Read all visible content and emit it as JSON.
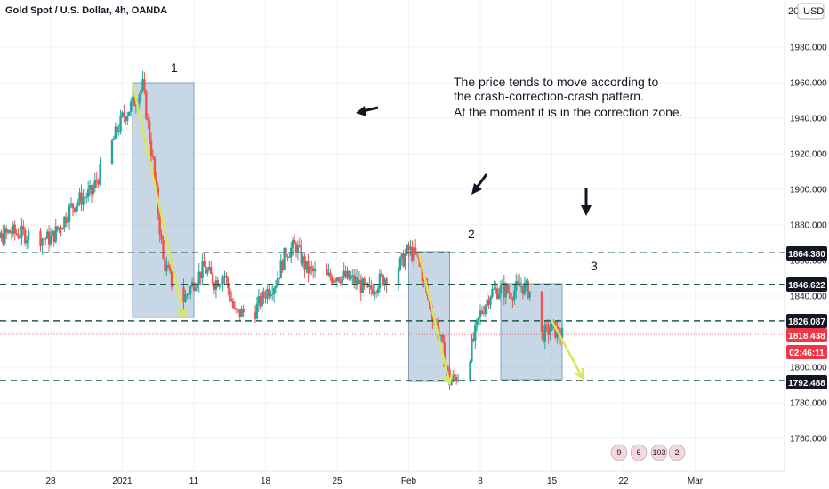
{
  "header": {
    "symbol_title": "Gold Spot / U.S. Dollar, 4h, OANDA",
    "currency_button": "USD",
    "currency_prefix": "20"
  },
  "annotation": {
    "lines": [
      "The price tends to move according to",
      "the crash-correction-crash pattern.",
      "At the moment it is in the correction zone."
    ]
  },
  "zone_labels": [
    "1",
    "2",
    "3"
  ],
  "price_tags": [
    {
      "value": "1864.380",
      "color": "#131722"
    },
    {
      "value": "1846.622",
      "color": "#131722"
    },
    {
      "value": "1826.087",
      "color": "#131722"
    },
    {
      "value": "1818.438",
      "color": "#f23645"
    },
    {
      "value": "02:46:11",
      "color": "#f23645"
    },
    {
      "value": "1792.488",
      "color": "#131722"
    }
  ],
  "bottom_indicators": [
    "9",
    "6",
    "103",
    "2"
  ],
  "colors": {
    "up": "#26a69a",
    "down": "#ef5350",
    "zone_fill": "#9bb7cf",
    "arrow": "#d9e85a",
    "dashed": "#1e5a4a",
    "current_price": "#f23645"
  },
  "chart_data": {
    "type": "candlestick",
    "symbol": "XAUUSD",
    "timeframe": "4h",
    "x_axis": {
      "tick_labels": [
        "28",
        "2021",
        "11",
        "18",
        "25",
        "Feb",
        "8",
        "15",
        "22",
        "Mar"
      ]
    },
    "y_axis": {
      "range": [
        1742,
        2002
      ],
      "tick_labels": [
        "1760.000",
        "1780.000",
        "1800.000",
        "1820.000",
        "1840.000",
        "1860.000",
        "1880.000",
        "1900.000",
        "1920.000",
        "1940.000",
        "1960.000",
        "1980.000"
      ]
    },
    "horizontal_levels": [
      1864.38,
      1846.622,
      1826.087,
      1792.488
    ],
    "current_price": 1818.438,
    "zones": [
      {
        "label": "1",
        "start": "2021-01-05",
        "end": "2021-01-11",
        "top": 1960,
        "bottom": 1828
      },
      {
        "label": "2",
        "start": "2021-02-01",
        "end": "2021-02-05",
        "top": 1865,
        "bottom": 1792
      },
      {
        "label": "3",
        "start": "2021-02-10",
        "end": "2021-02-16",
        "top": 1847,
        "bottom": 1793
      }
    ],
    "trend_arrows": [
      {
        "from": [
          "2021-01-05",
          1960
        ],
        "to": [
          "2021-01-10",
          1828
        ]
      },
      {
        "from": [
          "2021-02-02",
          1864
        ],
        "to": [
          "2021-02-05",
          1791
        ]
      },
      {
        "from": [
          "2021-02-15",
          1826
        ],
        "to": [
          "2021-02-18",
          1794
        ]
      }
    ],
    "close_path": [
      [
        "2020-12-21",
        1878
      ],
      [
        "2020-12-22",
        1868
      ],
      [
        "2020-12-23",
        1872
      ],
      [
        "2020-12-24",
        1876
      ],
      [
        "2020-12-25",
        1875
      ],
      [
        "2020-12-28",
        1872
      ],
      [
        "2020-12-29",
        1880
      ],
      [
        "2020-12-30",
        1890
      ],
      [
        "2020-12-31",
        1895
      ],
      [
        "2021-01-01",
        1898
      ],
      [
        "2021-01-04",
        1940
      ],
      [
        "2021-01-05",
        1948
      ],
      [
        "2021-01-06",
        1958
      ],
      [
        "2021-01-07",
        1915
      ],
      [
        "2021-01-08",
        1860
      ],
      [
        "2021-01-09",
        1845
      ],
      [
        "2021-01-10",
        1838
      ],
      [
        "2021-01-11",
        1848
      ],
      [
        "2021-01-12",
        1856
      ],
      [
        "2021-01-13",
        1848
      ],
      [
        "2021-01-14",
        1852
      ],
      [
        "2021-01-15",
        1830
      ],
      [
        "2021-01-17",
        1832
      ],
      [
        "2021-01-18",
        1842
      ],
      [
        "2021-01-19",
        1848
      ],
      [
        "2021-01-20",
        1865
      ],
      [
        "2021-01-21",
        1868
      ],
      [
        "2021-01-22",
        1855
      ],
      [
        "2021-01-24",
        1850
      ],
      [
        "2021-01-25",
        1852
      ],
      [
        "2021-01-26",
        1850
      ],
      [
        "2021-01-27",
        1848
      ],
      [
        "2021-01-28",
        1842
      ],
      [
        "2021-01-29",
        1848
      ],
      [
        "2021-01-31",
        1856
      ],
      [
        "2021-02-01",
        1866
      ],
      [
        "2021-02-02",
        1860
      ],
      [
        "2021-02-03",
        1836
      ],
      [
        "2021-02-04",
        1818
      ],
      [
        "2021-02-05",
        1792
      ],
      [
        "2021-02-06",
        1796
      ],
      [
        "2021-02-07",
        1808
      ],
      [
        "2021-02-08",
        1830
      ],
      [
        "2021-02-09",
        1842
      ],
      [
        "2021-02-10",
        1844
      ],
      [
        "2021-02-11",
        1842
      ],
      [
        "2021-02-12",
        1846
      ],
      [
        "2021-02-13",
        1842
      ],
      [
        "2021-02-14",
        1818
      ],
      [
        "2021-02-15",
        1822
      ],
      [
        "2021-02-16",
        1818
      ]
    ]
  }
}
